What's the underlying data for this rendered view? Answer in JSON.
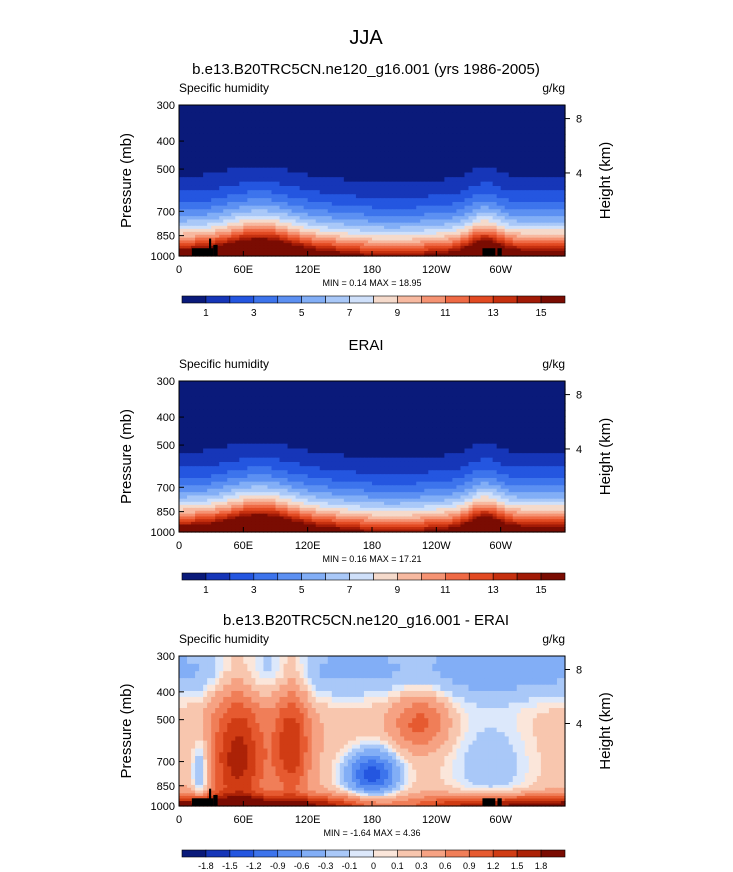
{
  "figure": {
    "title": "JJA"
  },
  "chart_data": [
    {
      "type": "heatmap",
      "subtitle": "b.e13.B20TRC5CN.ne120_g16.001 (yrs 1986-2005)",
      "left_label": "Specific humidity",
      "units": "g/kg",
      "ylabel": "Pressure (mb)",
      "ylabel_right": "Height (km)",
      "x_ticks": [
        "0",
        "60E",
        "120E",
        "180",
        "120W",
        "60W"
      ],
      "y_ticks": [
        "300",
        "400",
        "500",
        "700",
        "850",
        "1000"
      ],
      "y_ticks_right": [
        "8",
        "4"
      ],
      "stats": "MIN =  0.14  MAX =  18.95",
      "colorbar_labels": [
        "1",
        "3",
        "5",
        "7",
        "9",
        "11",
        "13",
        "15"
      ],
      "colorbar_colors": [
        "#0a1a7a",
        "#1636b8",
        "#2456e0",
        "#3d74ec",
        "#5c90f2",
        "#82aef6",
        "#a9c8f8",
        "#cfe0fa",
        "#f5dacb",
        "#f7b9a0",
        "#f59373",
        "#ef6a45",
        "#e24a22",
        "#c6300f",
        "#a11a06",
        "#7a0c02"
      ],
      "field": "full",
      "value_range": [
        0.14,
        18.95
      ]
    },
    {
      "type": "heatmap",
      "subtitle": "ERAI",
      "left_label": "Specific humidity",
      "units": "g/kg",
      "ylabel": "Pressure (mb)",
      "ylabel_right": "Height (km)",
      "x_ticks": [
        "0",
        "60E",
        "120E",
        "180",
        "120W",
        "60W"
      ],
      "y_ticks": [
        "300",
        "400",
        "500",
        "700",
        "850",
        "1000"
      ],
      "y_ticks_right": [
        "8",
        "4"
      ],
      "stats": "MIN =  0.16  MAX =  17.21",
      "colorbar_labels": [
        "1",
        "3",
        "5",
        "7",
        "9",
        "11",
        "13",
        "15"
      ],
      "colorbar_colors": [
        "#0a1a7a",
        "#1636b8",
        "#2456e0",
        "#3d74ec",
        "#5c90f2",
        "#82aef6",
        "#a9c8f8",
        "#cfe0fa",
        "#f5dacb",
        "#f7b9a0",
        "#f59373",
        "#ef6a45",
        "#e24a22",
        "#c6300f",
        "#a11a06",
        "#7a0c02"
      ],
      "field": "full",
      "value_range": [
        0.16,
        17.21
      ]
    },
    {
      "type": "heatmap",
      "subtitle": "b.e13.B20TRC5CN.ne120_g16.001 - ERAI",
      "left_label": "Specific humidity",
      "units": "g/kg",
      "ylabel": "Pressure (mb)",
      "ylabel_right": "Height (km)",
      "x_ticks": [
        "0",
        "60E",
        "120E",
        "180",
        "120W",
        "60W"
      ],
      "y_ticks": [
        "300",
        "400",
        "500",
        "700",
        "850",
        "1000"
      ],
      "y_ticks_right": [
        "8",
        "4"
      ],
      "stats": "MIN = -1.64  MAX =  4.36",
      "colorbar_labels": [
        "-1.8",
        "-1.5",
        "-1.2",
        "-0.9",
        "-0.6",
        "-0.3",
        "-0.1",
        "0",
        "0.1",
        "0.3",
        "0.6",
        "0.9",
        "1.2",
        "1.5",
        "1.8"
      ],
      "colorbar_colors": [
        "#0a1a7a",
        "#1636b8",
        "#2456e0",
        "#3d74ec",
        "#5c90f2",
        "#82aef6",
        "#a9c8f8",
        "#dce8fb",
        "#fbe6da",
        "#f8c6ae",
        "#f6a283",
        "#f07e58",
        "#e65a30",
        "#d03c14",
        "#ac2207",
        "#7a0c02"
      ],
      "field": "diff",
      "value_range": [
        -1.64,
        4.36
      ]
    }
  ]
}
